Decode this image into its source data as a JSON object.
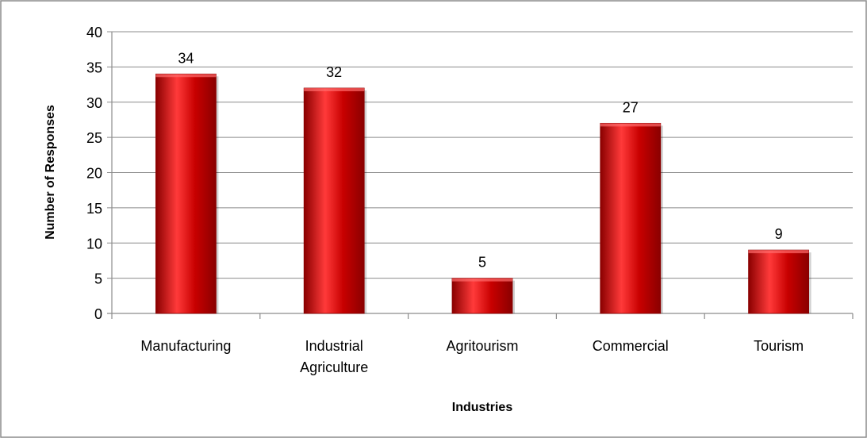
{
  "chart_data": {
    "type": "bar",
    "categories": [
      "Manufacturing",
      "Industrial Agriculture",
      "Agritourism",
      "Commercial",
      "Tourism"
    ],
    "category_lines": [
      [
        "Manufacturing"
      ],
      [
        "Industrial",
        "Agriculture"
      ],
      [
        "Agritourism"
      ],
      [
        "Commercial"
      ],
      [
        "Tourism"
      ]
    ],
    "values": [
      34,
      32,
      5,
      27,
      9
    ],
    "data_labels": [
      "34",
      "32",
      "5",
      "27",
      "9"
    ],
    "title": "",
    "xlabel": "Industries",
    "ylabel": "Number of Responses",
    "ylim": [
      0,
      40
    ],
    "yticks": [
      0,
      5,
      10,
      15,
      20,
      25,
      30,
      35,
      40
    ],
    "grid": true,
    "legend": "none",
    "colors": {
      "bar": "#c80000",
      "bar_light": "#ff3a3a",
      "bar_dark": "#8a0000",
      "grid": "#8c8c8c",
      "frame": "#8c8c8c"
    }
  }
}
